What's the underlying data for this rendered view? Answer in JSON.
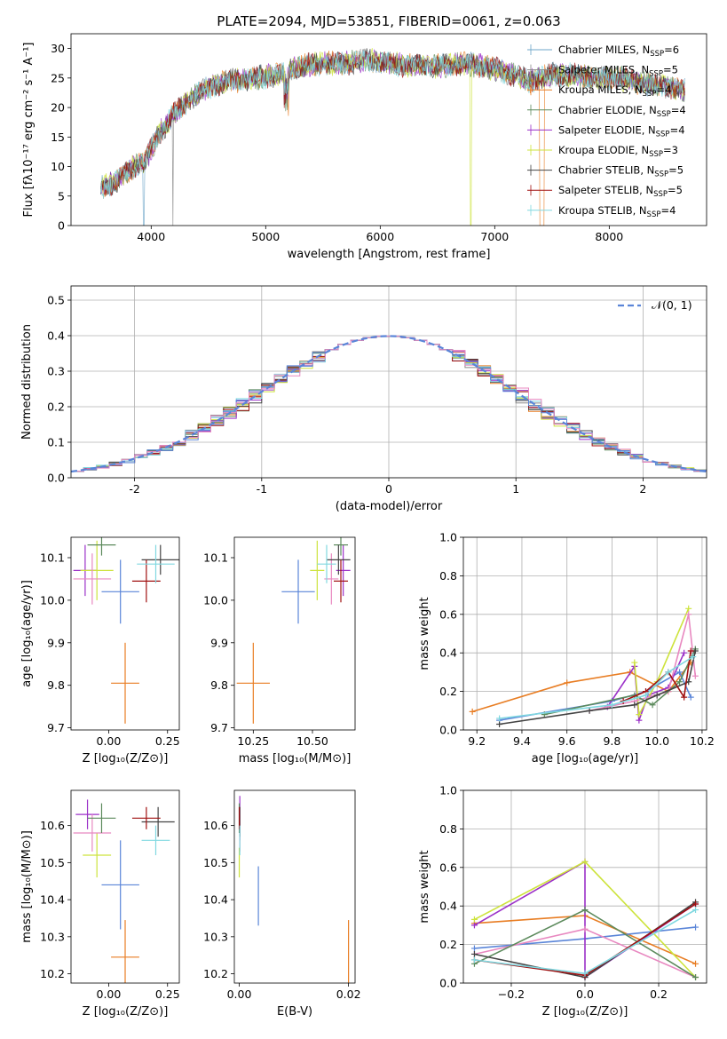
{
  "chart_data": [
    {
      "id": "spectrum",
      "type": "line",
      "title": "PLATE=2094, MJD=53851, FIBERID=0061, z=0.063",
      "xlabel": "wavelength [Angstrom, rest frame]",
      "ylabel": "Flux [fλ10⁻¹⁷ erg cm⁻² s⁻¹ A⁻¹]",
      "xlim": [
        3300,
        8850
      ],
      "ylim": [
        0,
        32.5
      ],
      "xticks": [
        4000,
        5000,
        6000,
        7000,
        8000
      ],
      "yticks": [
        0,
        5,
        10,
        15,
        20,
        25,
        30
      ],
      "grid": false,
      "legend": "top-right",
      "continuum": {
        "x": [
          3560,
          3700,
          3850,
          3950,
          4050,
          4200,
          4350,
          4500,
          4700,
          4900,
          5100,
          5300,
          5500,
          5700,
          5900,
          6100,
          6300,
          6500,
          6700,
          6900,
          7100,
          7300,
          7500,
          7700,
          7900,
          8100,
          8300,
          8500,
          8660
        ],
        "y": [
          6.5,
          7.5,
          10.0,
          11.0,
          15.0,
          19.0,
          21.5,
          23.5,
          24.5,
          25.0,
          25.5,
          27.0,
          27.5,
          27.5,
          28.0,
          27.5,
          27.0,
          27.0,
          27.5,
          27.0,
          26.0,
          24.5,
          25.5,
          25.5,
          25.0,
          25.0,
          24.0,
          23.5,
          23.0
        ]
      },
      "series": [
        {
          "name": "Chabrier MILES, N_SSP=6",
          "label": "Chabrier MILES, N",
          "sub": "SSP",
          "suffix": "=6",
          "color": "#6ca5c8"
        },
        {
          "name": "Salpeter MILES, N_SSP=5",
          "label": "Salpeter MILES, N",
          "sub": "SSP",
          "suffix": "=5",
          "color": "#888888"
        },
        {
          "name": "Kroupa MILES, N_SSP=4",
          "label": "Kroupa MILES, N",
          "sub": "SSP",
          "suffix": "=4",
          "color": "#e87d23"
        },
        {
          "name": "Chabrier ELODIE, N_SSP=4",
          "label": "Chabrier ELODIE, N",
          "sub": "SSP",
          "suffix": "=4",
          "color": "#5c8a5c"
        },
        {
          "name": "Salpeter ELODIE, N_SSP=4",
          "label": "Salpeter ELODIE, N",
          "sub": "SSP",
          "suffix": "=4",
          "color": "#9b30c8"
        },
        {
          "name": "Kroupa ELODIE, N_SSP=3",
          "label": "Kroupa ELODIE, N",
          "sub": "SSP",
          "suffix": "=3",
          "color": "#cde33c"
        },
        {
          "name": "Chabrier STELIB, N_SSP=5",
          "label": "Chabrier STELIB, N",
          "sub": "SSP",
          "suffix": "=5",
          "color": "#444444"
        },
        {
          "name": "Salpeter STELIB, N_SSP=5",
          "label": "Salpeter STELIB, N",
          "sub": "SSP",
          "suffix": "=5",
          "color": "#a01010"
        },
        {
          "name": "Kroupa STELIB, N_SSP=4",
          "label": "Kroupa STELIB, N",
          "sub": "SSP",
          "suffix": "=4",
          "color": "#80d8e0"
        }
      ]
    },
    {
      "id": "residuals",
      "type": "histogram",
      "xlabel": "(data-model)/error",
      "ylabel": "Normed distribution",
      "xlim": [
        -2.5,
        2.5
      ],
      "ylim": [
        0,
        0.54
      ],
      "xticks": [
        -2,
        -1,
        0,
        1,
        2
      ],
      "yticks": [
        0.0,
        0.1,
        0.2,
        0.3,
        0.4,
        0.5
      ],
      "grid": true,
      "legend": "top-right",
      "reference_label": "𝒩(0, 1)",
      "reference_color": "#5a85d8",
      "bin_width": 0.1,
      "colors": [
        "#6ca5c8",
        "#888888",
        "#e87d23",
        "#5c8a5c",
        "#9b30c8",
        "#cde33c",
        "#444444",
        "#a01010",
        "#80d8e0",
        "#5a85d8",
        "#e888c0"
      ],
      "amplitude": [
        0.0,
        0.05,
        0.1,
        0.12,
        0.14
      ],
      "seeds": [
        3,
        7,
        11,
        17,
        23,
        29,
        31,
        37,
        41,
        43,
        47
      ]
    },
    {
      "id": "age-vs-Z",
      "type": "scatter",
      "xlabel": "Z [log₁₀(Z/Z⊙)]",
      "ylabel": "age  [log₁₀(age/yr)]",
      "xlim": [
        -0.16,
        0.3
      ],
      "ylim": [
        9.695,
        10.148
      ],
      "xticks": [
        0.0,
        0.25
      ],
      "xticklabels": [
        "0.00",
        "0.25"
      ],
      "yticks": [
        9.7,
        9.8,
        9.9,
        10.0,
        10.1
      ],
      "yticklabels": [
        "9.7",
        "9.8",
        "9.9",
        "10.0",
        "10.1"
      ],
      "points": [
        {
          "x": 0.07,
          "y": 9.805,
          "xerr": 0.06,
          "yerr": 0.095,
          "color": "#e87d23"
        },
        {
          "x": 0.05,
          "y": 10.02,
          "xerr": 0.08,
          "yerr": 0.075,
          "color": "#5a85d8"
        },
        {
          "x": -0.1,
          "y": 10.07,
          "xerr": 0.05,
          "yerr": 0.06,
          "color": "#9b30c8"
        },
        {
          "x": -0.05,
          "y": 10.07,
          "xerr": 0.07,
          "yerr": 0.07,
          "color": "#cde33c"
        },
        {
          "x": -0.07,
          "y": 10.05,
          "xerr": 0.08,
          "yerr": 0.06,
          "color": "#e888c0"
        },
        {
          "x": -0.03,
          "y": 10.13,
          "xerr": 0.06,
          "yerr": 0.025,
          "color": "#5c8a5c"
        },
        {
          "x": 0.22,
          "y": 10.095,
          "xerr": 0.08,
          "yerr": 0.035,
          "color": "#444444"
        },
        {
          "x": 0.16,
          "y": 10.045,
          "xerr": 0.06,
          "yerr": 0.05,
          "color": "#a01010"
        },
        {
          "x": 0.2,
          "y": 10.085,
          "xerr": 0.08,
          "yerr": 0.045,
          "color": "#80d8e0"
        }
      ]
    },
    {
      "id": "age-vs-mass",
      "type": "scatter",
      "xlabel": "mass [log₁₀(M/M⊙)]",
      "ylabel": "",
      "xlim": [
        10.17,
        10.68
      ],
      "ylim": [
        9.695,
        10.148
      ],
      "xticks": [
        10.25,
        10.5
      ],
      "xticklabels": [
        "10.25",
        "10.50"
      ],
      "yticks": [
        9.7,
        9.8,
        9.9,
        10.0,
        10.1
      ],
      "yticklabels": [
        "9.7",
        "9.8",
        "9.9",
        "10.0",
        "10.1"
      ],
      "points": [
        {
          "x": 10.25,
          "y": 9.805,
          "xerr": 0.07,
          "yerr": 0.095,
          "color": "#e87d23"
        },
        {
          "x": 10.44,
          "y": 10.02,
          "xerr": 0.07,
          "yerr": 0.075,
          "color": "#5a85d8"
        },
        {
          "x": 10.63,
          "y": 10.07,
          "xerr": 0.03,
          "yerr": 0.06,
          "color": "#9b30c8"
        },
        {
          "x": 10.52,
          "y": 10.07,
          "xerr": 0.03,
          "yerr": 0.07,
          "color": "#cde33c"
        },
        {
          "x": 10.58,
          "y": 10.05,
          "xerr": 0.03,
          "yerr": 0.06,
          "color": "#e888c0"
        },
        {
          "x": 10.62,
          "y": 10.13,
          "xerr": 0.03,
          "yerr": 0.025,
          "color": "#5c8a5c"
        },
        {
          "x": 10.61,
          "y": 10.095,
          "xerr": 0.05,
          "yerr": 0.035,
          "color": "#444444"
        },
        {
          "x": 10.62,
          "y": 10.045,
          "xerr": 0.03,
          "yerr": 0.05,
          "color": "#a01010"
        },
        {
          "x": 10.56,
          "y": 10.085,
          "xerr": 0.04,
          "yerr": 0.045,
          "color": "#80d8e0"
        }
      ]
    },
    {
      "id": "weight-vs-age",
      "type": "line",
      "xlabel": "age  [log₁₀(age/yr)]",
      "ylabel": "mass weight",
      "xlim": [
        9.14,
        10.22
      ],
      "ylim": [
        0,
        1.0
      ],
      "xticks": [
        9.2,
        9.4,
        9.6,
        9.8,
        10.0,
        10.2
      ],
      "xticklabels": [
        "9.2",
        "9.4",
        "9.6",
        "9.8",
        "10.0",
        "10.2"
      ],
      "yticks": [
        0.0,
        0.2,
        0.4,
        0.6,
        0.8,
        1.0
      ],
      "yticklabels": [
        "0.0",
        "0.2",
        "0.4",
        "0.6",
        "0.8",
        "1.0"
      ],
      "grid": true,
      "series": [
        {
          "color": "#e87d23",
          "x": [
            9.18,
            9.6,
            9.88,
            10.05,
            10.15
          ],
          "y": [
            0.095,
            0.245,
            0.3,
            0.2,
            0.35
          ]
        },
        {
          "color": "#5a85d8",
          "x": [
            9.3,
            9.8,
            9.95,
            10.1,
            10.15
          ],
          "y": [
            0.05,
            0.15,
            0.2,
            0.3,
            0.17
          ]
        },
        {
          "color": "#9b30c8",
          "x": [
            9.78,
            9.9,
            9.92,
            9.96,
            10.05,
            10.12
          ],
          "y": [
            0.12,
            0.33,
            0.05,
            0.18,
            0.22,
            0.4
          ]
        },
        {
          "color": "#cde33c",
          "x": [
            9.9,
            9.92,
            10.0,
            10.14
          ],
          "y": [
            0.35,
            0.08,
            0.25,
            0.63
          ]
        },
        {
          "color": "#e888c0",
          "x": [
            9.7,
            9.9,
            10.05,
            10.14,
            10.17
          ],
          "y": [
            0.1,
            0.15,
            0.2,
            0.6,
            0.28
          ]
        },
        {
          "color": "#5c8a5c",
          "x": [
            9.5,
            9.9,
            9.98,
            10.1,
            10.17
          ],
          "y": [
            0.08,
            0.18,
            0.13,
            0.25,
            0.42
          ]
        },
        {
          "color": "#444444",
          "x": [
            9.3,
            9.7,
            9.9,
            10.0,
            10.14,
            10.17
          ],
          "y": [
            0.03,
            0.1,
            0.13,
            0.18,
            0.25,
            0.41
          ]
        },
        {
          "color": "#a01010",
          "x": [
            9.85,
            9.95,
            10.05,
            10.12,
            10.15
          ],
          "y": [
            0.15,
            0.2,
            0.3,
            0.17,
            0.41
          ]
        },
        {
          "color": "#80d8e0",
          "x": [
            9.3,
            9.8,
            9.95,
            10.05,
            10.16
          ],
          "y": [
            0.06,
            0.13,
            0.18,
            0.3,
            0.38
          ]
        }
      ]
    },
    {
      "id": "mass-vs-Z",
      "type": "scatter",
      "xlabel": "Z [log₁₀(Z/Z⊙)]",
      "ylabel": "mass [log₁₀(M/M⊙)]",
      "xlim": [
        -0.16,
        0.3
      ],
      "ylim": [
        10.175,
        10.695
      ],
      "xticks": [
        0.0,
        0.25
      ],
      "xticklabels": [
        "0.00",
        "0.25"
      ],
      "yticks": [
        10.2,
        10.3,
        10.4,
        10.5,
        10.6
      ],
      "yticklabels": [
        "10.2",
        "10.3",
        "10.4",
        "10.5",
        "10.6"
      ],
      "points": [
        {
          "x": 0.07,
          "y": 10.245,
          "xerr": 0.06,
          "yerr": 0.1,
          "color": "#e87d23"
        },
        {
          "x": 0.05,
          "y": 10.44,
          "xerr": 0.08,
          "yerr": 0.12,
          "color": "#5a85d8"
        },
        {
          "x": -0.09,
          "y": 10.63,
          "xerr": 0.05,
          "yerr": 0.04,
          "color": "#9b30c8"
        },
        {
          "x": -0.05,
          "y": 10.52,
          "xerr": 0.06,
          "yerr": 0.06,
          "color": "#cde33c"
        },
        {
          "x": -0.07,
          "y": 10.58,
          "xerr": 0.08,
          "yerr": 0.05,
          "color": "#e888c0"
        },
        {
          "x": -0.03,
          "y": 10.62,
          "xerr": 0.06,
          "yerr": 0.04,
          "color": "#5c8a5c"
        },
        {
          "x": 0.21,
          "y": 10.61,
          "xerr": 0.07,
          "yerr": 0.04,
          "color": "#444444"
        },
        {
          "x": 0.16,
          "y": 10.62,
          "xerr": 0.06,
          "yerr": 0.03,
          "color": "#a01010"
        },
        {
          "x": 0.2,
          "y": 10.56,
          "xerr": 0.06,
          "yerr": 0.04,
          "color": "#80d8e0"
        }
      ]
    },
    {
      "id": "mass-vs-EBV",
      "type": "scatter",
      "xlabel": "E(B-V)",
      "ylabel": "",
      "xlim": [
        -0.0009,
        0.0212
      ],
      "ylim": [
        10.175,
        10.695
      ],
      "xticks": [
        0.0,
        0.02
      ],
      "xticklabels": [
        "0.00",
        "0.02"
      ],
      "yticks": [
        10.2,
        10.3,
        10.4,
        10.5,
        10.6
      ],
      "yticklabels": [
        "10.2",
        "10.3",
        "10.4",
        "10.5",
        "10.6"
      ],
      "points": [
        {
          "x": 0.02,
          "y": 10.245,
          "xerr": 0,
          "yerr": 0.1,
          "color": "#e87d23"
        },
        {
          "x": 0.0035,
          "y": 10.41,
          "xerr": 0,
          "yerr": 0.08,
          "color": "#5a85d8"
        },
        {
          "x": 0.0001,
          "y": 10.62,
          "xerr": 0,
          "yerr": 0.06,
          "color": "#9b30c8"
        },
        {
          "x": 0.0,
          "y": 10.5,
          "xerr": 0,
          "yerr": 0.04,
          "color": "#cde33c"
        },
        {
          "x": 0.0001,
          "y": 10.58,
          "xerr": 0,
          "yerr": 0.05,
          "color": "#e888c0"
        },
        {
          "x": 0.0,
          "y": 10.62,
          "xerr": 0,
          "yerr": 0.04,
          "color": "#5c8a5c"
        },
        {
          "x": 0.0001,
          "y": 10.61,
          "xerr": 0,
          "yerr": 0.04,
          "color": "#444444"
        },
        {
          "x": 0.0,
          "y": 10.62,
          "xerr": 0,
          "yerr": 0.03,
          "color": "#a01010"
        },
        {
          "x": 0.0001,
          "y": 10.56,
          "xerr": 0,
          "yerr": 0.04,
          "color": "#80d8e0"
        }
      ]
    },
    {
      "id": "weight-vs-Z",
      "type": "line",
      "xlabel": "Z [log₁₀(Z/Z⊙)]",
      "ylabel": "mass weight",
      "xlim": [
        -0.33,
        0.33
      ],
      "ylim": [
        0,
        1.0
      ],
      "xticks": [
        -0.2,
        0.0,
        0.2
      ],
      "xticklabels": [
        "−0.2",
        "0.0",
        "0.2"
      ],
      "yticks": [
        0.0,
        0.2,
        0.4,
        0.6,
        0.8,
        1.0
      ],
      "yticklabels": [
        "0.0",
        "0.2",
        "0.4",
        "0.6",
        "0.8",
        "1.0"
      ],
      "grid": true,
      "series": [
        {
          "color": "#e87d23",
          "x": [
            -0.3,
            0.0,
            0.3
          ],
          "y": [
            0.31,
            0.35,
            0.1
          ]
        },
        {
          "color": "#5a85d8",
          "x": [
            -0.3,
            0.0,
            0.3
          ],
          "y": [
            0.18,
            0.23,
            0.29
          ]
        },
        {
          "color": "#9b30c8",
          "x": [
            -0.3,
            0.0,
            0.0,
            0.3
          ],
          "y": [
            0.3,
            0.63,
            0.03,
            0.41
          ]
        },
        {
          "color": "#cde33c",
          "x": [
            -0.3,
            0.0,
            0.3
          ],
          "y": [
            0.33,
            0.63,
            0.03
          ]
        },
        {
          "color": "#e888c0",
          "x": [
            -0.3,
            0.0,
            0.3
          ],
          "y": [
            0.15,
            0.28,
            0.03
          ]
        },
        {
          "color": "#5c8a5c",
          "x": [
            -0.3,
            0.0,
            0.3
          ],
          "y": [
            0.1,
            0.38,
            0.03
          ]
        },
        {
          "color": "#444444",
          "x": [
            -0.3,
            0.0,
            0.3
          ],
          "y": [
            0.15,
            0.03,
            0.42
          ]
        },
        {
          "color": "#a01010",
          "x": [
            -0.3,
            0.0,
            0.3
          ],
          "y": [
            0.12,
            0.04,
            0.41
          ]
        },
        {
          "color": "#80d8e0",
          "x": [
            -0.3,
            0.0,
            0.3
          ],
          "y": [
            0.12,
            0.05,
            0.38
          ]
        }
      ]
    }
  ]
}
